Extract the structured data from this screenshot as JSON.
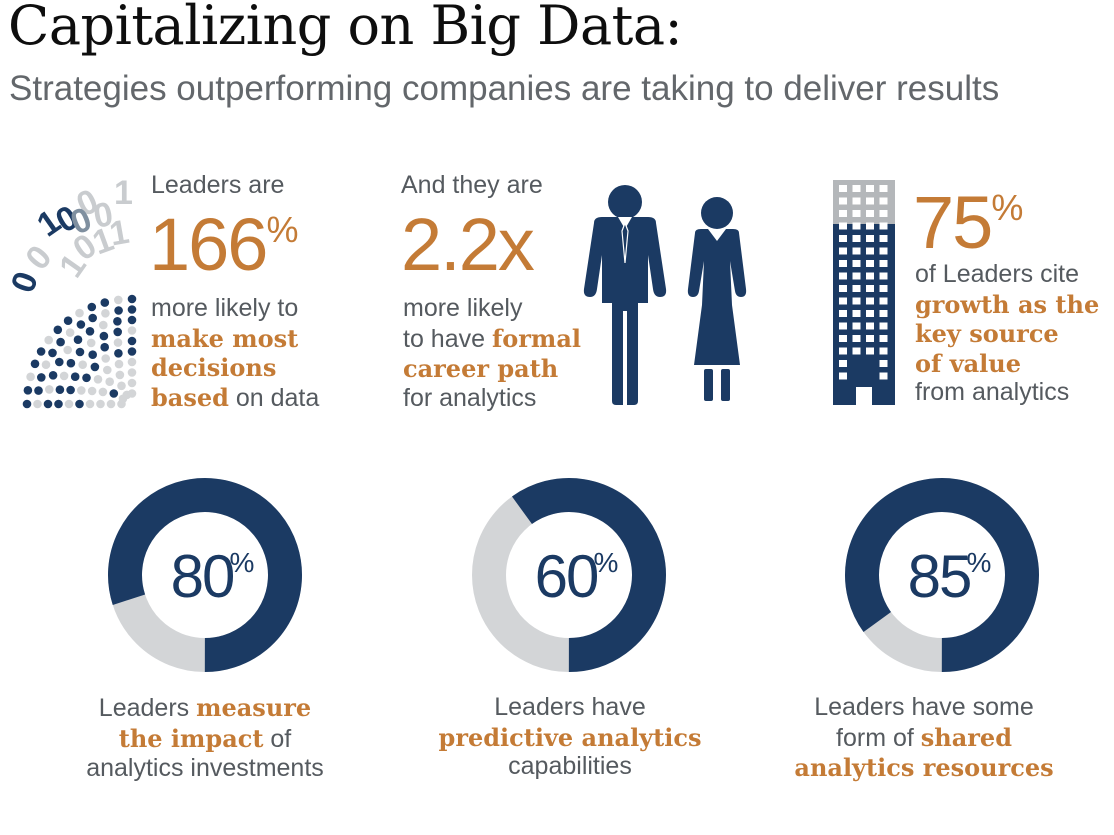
{
  "title": "Capitalizing on Big Data:",
  "subtitle": "Strategies outperforming companies are taking to deliver results",
  "colors": {
    "navy": "#1b3a63",
    "orange": "#c47b36",
    "gray": "#d3d5d7",
    "text": "#555a5f"
  },
  "stat1": {
    "lead": "Leaders are",
    "value": "166",
    "unit": "%",
    "line1": "more likely to",
    "hl1": "make most",
    "hl2": "decisions",
    "hl3": "based",
    "tail": " on data",
    "icon": "binary-data-icon",
    "binary_digits": [
      "0",
      "0",
      "1",
      "1",
      "0",
      "0",
      "1",
      "0",
      "1",
      "0",
      "1",
      "0"
    ]
  },
  "stat2": {
    "lead": "And they are",
    "value": "2.2x",
    "line1": "more likely",
    "line2_pre": "to have ",
    "hl1": "formal",
    "hl2": "career path",
    "line4": "for analytics",
    "icon": "business-people-icon"
  },
  "stat3": {
    "value": "75",
    "unit": "%",
    "line1": "of Leaders cite",
    "hl1": "growth as the",
    "hl2": "key source",
    "hl3": "of value",
    "line5": "from analytics",
    "icon": "office-building-icon"
  },
  "chart_data": {
    "type": "pie",
    "donuts": [
      {
        "value": 80,
        "label": "80",
        "unit": "%",
        "pre": "Leaders ",
        "hl1": "measure",
        "hl2": "the impact",
        "mid": " of",
        "post": "analytics investments"
      },
      {
        "value": 60,
        "label": "60",
        "unit": "%",
        "pre": "Leaders have",
        "hl1": "predictive analytics",
        "post": "capabilities"
      },
      {
        "value": 85,
        "label": "85",
        "unit": "%",
        "pre": "Leaders have some",
        "pre2": "form of ",
        "hl1": "shared",
        "hl2": "analytics resources"
      }
    ]
  }
}
